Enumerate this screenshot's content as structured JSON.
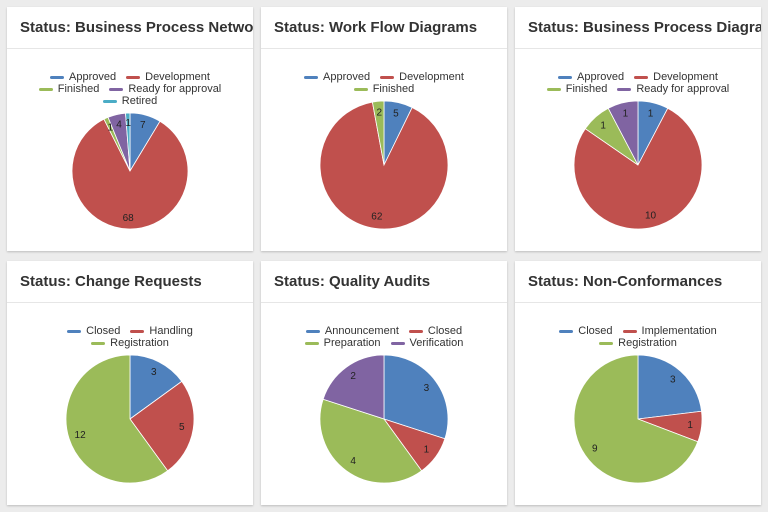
{
  "chart_data": [
    {
      "type": "pie",
      "title": "Status: Business Process Networ…",
      "categories": [
        "Approved",
        "Development",
        "Finished",
        "Ready for approval",
        "Retired"
      ],
      "values": [
        7,
        68,
        1,
        4,
        1
      ],
      "colors": [
        "#4f81bd",
        "#c0504d",
        "#9bbb59",
        "#8064a2",
        "#4bacc6"
      ]
    },
    {
      "type": "pie",
      "title": "Status: Work Flow Diagrams",
      "categories": [
        "Approved",
        "Development",
        "Finished"
      ],
      "values": [
        5,
        62,
        2
      ],
      "colors": [
        "#4f81bd",
        "#c0504d",
        "#9bbb59"
      ]
    },
    {
      "type": "pie",
      "title": "Status: Business Process Diagra…",
      "categories": [
        "Approved",
        "Development",
        "Finished",
        "Ready for approval"
      ],
      "values": [
        1,
        10,
        1,
        1
      ],
      "colors": [
        "#4f81bd",
        "#c0504d",
        "#9bbb59",
        "#8064a2"
      ]
    },
    {
      "type": "pie",
      "title": "Status: Change Requests",
      "categories": [
        "Closed",
        "Handling",
        "Registration"
      ],
      "values": [
        3,
        5,
        12
      ],
      "colors": [
        "#4f81bd",
        "#c0504d",
        "#9bbb59"
      ]
    },
    {
      "type": "pie",
      "title": "Status: Quality Audits",
      "categories": [
        "Announcement",
        "Closed",
        "Preparation",
        "Verification"
      ],
      "values": [
        3,
        1,
        4,
        2
      ],
      "colors": [
        "#4f81bd",
        "#c0504d",
        "#9bbb59",
        "#8064a2"
      ]
    },
    {
      "type": "pie",
      "title": "Status: Non-Conformances",
      "categories": [
        "Closed",
        "Implementation",
        "Registration"
      ],
      "values": [
        3,
        1,
        9
      ],
      "colors": [
        "#4f81bd",
        "#c0504d",
        "#9bbb59"
      ]
    }
  ]
}
